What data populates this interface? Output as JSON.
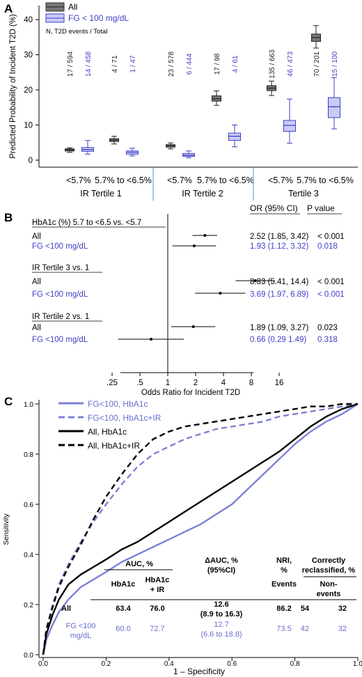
{
  "colors": {
    "all": "#333333",
    "fg": "#3f3fc8",
    "fg_fill": "#c9cbf4",
    "fg_line": "#7c80d6",
    "all_fill": "#777777",
    "axis": "#000000",
    "sep": "#5a8fc4"
  },
  "chart_data": [
    {
      "panel": "A",
      "type": "box",
      "ylabel": "Predicted Probability of Incident T2D (%)",
      "ylim": [
        -2,
        44
      ],
      "yticks": [
        0,
        10,
        20,
        30,
        40
      ],
      "legend": {
        "items": [
          {
            "key": "all",
            "label": "All"
          },
          {
            "key": "fg",
            "label": "FG < 100 mg/dL"
          }
        ],
        "note": "N, T2D events / Total",
        "position": "top-left"
      },
      "categories": [
        "<5.7%",
        "5.7% to <6.5%",
        "<5.7%",
        "5.7% to <6.5%",
        "<5.7%",
        "5.7% to <6.5%"
      ],
      "groups": [
        "IR Tertile 1",
        "IR Tertile 2",
        "Tertile 3"
      ],
      "series": [
        {
          "name": "All",
          "key": "all",
          "counts": [
            "17 / 594",
            "4 / 71",
            "23 / 578",
            "17 / 98",
            "135 / 663",
            "70 / 201"
          ],
          "boxes": [
            {
              "min": 2.2,
              "q1": 2.6,
              "med": 2.9,
              "q3": 3.2,
              "max": 3.5
            },
            {
              "min": 4.6,
              "q1": 5.3,
              "med": 5.7,
              "q3": 6.1,
              "max": 6.8
            },
            {
              "min": 3.2,
              "q1": 3.7,
              "med": 4.1,
              "q3": 4.4,
              "max": 4.9
            },
            {
              "min": 15.6,
              "q1": 16.8,
              "med": 17.5,
              "q3": 18.3,
              "max": 19.7
            },
            {
              "min": 18.4,
              "q1": 19.8,
              "med": 20.5,
              "q3": 21.2,
              "max": 22.5
            },
            {
              "min": 31.9,
              "q1": 33.8,
              "med": 34.9,
              "q3": 35.9,
              "max": 38.3
            }
          ]
        },
        {
          "name": "FG < 100 mg/dL",
          "key": "fg",
          "counts": [
            "14 / 458",
            "1 / 47",
            "6 / 444",
            "4 / 61",
            "46 / 473",
            "15 / 100"
          ],
          "boxes": [
            {
              "min": 1.7,
              "q1": 2.5,
              "med": 3.0,
              "q3": 3.6,
              "max": 5.6
            },
            {
              "min": 1.2,
              "q1": 1.7,
              "med": 2.2,
              "q3": 2.6,
              "max": 3.4
            },
            {
              "min": 0.7,
              "q1": 1.1,
              "med": 1.4,
              "q3": 1.9,
              "max": 2.6
            },
            {
              "min": 3.8,
              "q1": 5.6,
              "med": 6.8,
              "q3": 7.7,
              "max": 10.0
            },
            {
              "min": 4.8,
              "q1": 8.2,
              "med": 9.9,
              "q3": 11.3,
              "max": 17.4
            },
            {
              "min": 8.9,
              "q1": 12.1,
              "med": 15.2,
              "q3": 17.8,
              "max": 23.5
            }
          ]
        }
      ]
    },
    {
      "panel": "B",
      "type": "forest",
      "xlabel": "Odds Ratio for Incident T2D",
      "xscale": "log",
      "xticks": [
        0.25,
        0.5,
        1,
        2,
        4,
        8,
        16
      ],
      "xtick_labels": [
        ".25",
        ".5",
        "1",
        "2",
        "4",
        "8",
        "16"
      ],
      "col_headers": [
        "OR (95% CI)",
        "P value"
      ],
      "sections": [
        {
          "heading": "HbA1c (%) 5.7 to <6.5 vs. <5.7",
          "rows": [
            {
              "label": "All",
              "key": "all",
              "or": 2.52,
              "lo": 1.85,
              "hi": 3.42,
              "or_text": "2.52 (1.85, 3.42)",
              "p_text": "< 0.001"
            },
            {
              "label": "FG <100 mg/dL",
              "key": "fg",
              "or": 1.93,
              "lo": 1.12,
              "hi": 3.32,
              "or_text": "1.93 (1.12, 3.32)",
              "p_text": "0.018"
            }
          ]
        },
        {
          "heading": "IR Tertile 3 vs. 1",
          "rows": [
            {
              "label": "All",
              "key": "all",
              "or": 8.83,
              "lo": 5.41,
              "hi": 14.4,
              "or_text": "8.83 (5.41, 14.4)",
              "p_text": "< 0.001"
            },
            {
              "label": "FG <100 mg/dL",
              "key": "fg",
              "or": 3.69,
              "lo": 1.97,
              "hi": 6.89,
              "or_text": "3.69 (1.97, 6.89)",
              "p_text": "< 0.001"
            }
          ]
        },
        {
          "heading": "IR Tertile 2 vs. 1",
          "rows": [
            {
              "label": "All",
              "key": "all",
              "or": 1.89,
              "lo": 1.09,
              "hi": 3.27,
              "or_text": "1.89 (1.09, 3.27)",
              "p_text": "0.023"
            },
            {
              "label": "FG <100 mg/dL",
              "key": "fg",
              "or": 0.66,
              "lo": 0.29,
              "hi": 1.49,
              "or_text": "0.66 (0.29 1.49)",
              "p_text": "0.318"
            }
          ]
        }
      ]
    },
    {
      "panel": "C",
      "type": "line",
      "xlabel": "1 – Specificity",
      "ylabel": "Sensitivity",
      "xlim": [
        0,
        1
      ],
      "ylim": [
        0,
        1
      ],
      "ticks": [
        0,
        0.2,
        0.4,
        0.6,
        0.8,
        1
      ],
      "tick_labels": [
        "0.0",
        "0.2",
        "0.4",
        "0.6",
        "0.8",
        "1.0"
      ],
      "legend_position": "top-left",
      "series": [
        {
          "name": "FG<100, HbA1c",
          "key": "fg",
          "dash": false,
          "x": [
            0,
            0.01,
            0.03,
            0.05,
            0.08,
            0.12,
            0.16,
            0.2,
            0.25,
            0.3,
            0.35,
            0.4,
            0.45,
            0.5,
            0.55,
            0.6,
            0.65,
            0.7,
            0.75,
            0.8,
            0.85,
            0.9,
            0.95,
            1.0
          ],
          "y": [
            0,
            0.06,
            0.12,
            0.17,
            0.22,
            0.27,
            0.3,
            0.33,
            0.37,
            0.4,
            0.43,
            0.46,
            0.49,
            0.52,
            0.56,
            0.6,
            0.66,
            0.72,
            0.78,
            0.84,
            0.89,
            0.93,
            0.96,
            1.0
          ]
        },
        {
          "name": "FG<100, HbA1c+IR",
          "key": "fg",
          "dash": true,
          "x": [
            0,
            0.01,
            0.03,
            0.05,
            0.08,
            0.12,
            0.16,
            0.2,
            0.25,
            0.3,
            0.35,
            0.4,
            0.45,
            0.5,
            0.55,
            0.6,
            0.65,
            0.7,
            0.75,
            0.8,
            0.85,
            0.9,
            0.95,
            1.0
          ],
          "y": [
            0,
            0.1,
            0.2,
            0.28,
            0.36,
            0.45,
            0.53,
            0.6,
            0.68,
            0.75,
            0.8,
            0.83,
            0.86,
            0.88,
            0.9,
            0.91,
            0.92,
            0.93,
            0.95,
            0.96,
            0.97,
            0.98,
            0.99,
            1.0
          ]
        },
        {
          "name": "All, HbA1c",
          "key": "all",
          "dash": false,
          "x": [
            0,
            0.01,
            0.03,
            0.05,
            0.08,
            0.12,
            0.16,
            0.2,
            0.25,
            0.3,
            0.35,
            0.4,
            0.45,
            0.5,
            0.55,
            0.6,
            0.65,
            0.7,
            0.75,
            0.8,
            0.85,
            0.9,
            0.95,
            1.0
          ],
          "y": [
            0,
            0.08,
            0.16,
            0.22,
            0.28,
            0.32,
            0.35,
            0.38,
            0.42,
            0.45,
            0.49,
            0.53,
            0.57,
            0.61,
            0.65,
            0.69,
            0.73,
            0.77,
            0.81,
            0.86,
            0.91,
            0.95,
            0.98,
            1.0
          ]
        },
        {
          "name": "All, HbA1c+IR",
          "key": "all",
          "dash": true,
          "x": [
            0,
            0.01,
            0.03,
            0.05,
            0.08,
            0.12,
            0.16,
            0.2,
            0.25,
            0.3,
            0.35,
            0.4,
            0.45,
            0.5,
            0.55,
            0.6,
            0.65,
            0.7,
            0.75,
            0.8,
            0.85,
            0.9,
            0.95,
            1.0
          ],
          "y": [
            0,
            0.1,
            0.19,
            0.27,
            0.35,
            0.44,
            0.54,
            0.63,
            0.72,
            0.8,
            0.86,
            0.89,
            0.91,
            0.92,
            0.93,
            0.94,
            0.95,
            0.96,
            0.97,
            0.98,
            0.99,
            0.99,
            1.0,
            1.0
          ]
        }
      ],
      "table": {
        "group_headers": [
          "AUC, %",
          "ΔAUC, %",
          "(95%CI)",
          "NRI,",
          "%",
          "Correctly",
          "reclassified, %"
        ],
        "col_headers": [
          "HbA1c",
          "HbA1c",
          "+ IR",
          "Events",
          "Non-",
          "events"
        ],
        "rows": [
          {
            "key": "all",
            "label": [
              "All"
            ],
            "auc1": "63.4",
            "auc2": "76.0",
            "dauc": [
              "12.6",
              "(8.9 to 16.3)"
            ],
            "nri": "86.2",
            "events": "54",
            "nonevents": "32"
          },
          {
            "key": "fg",
            "label": [
              "FG <100",
              "mg/dL"
            ],
            "auc1": "60.0",
            "auc2": "72.7",
            "dauc": [
              "12.7",
              "(6.6 to 18.8)"
            ],
            "nri": "73.5",
            "events": "42",
            "nonevents": "32"
          }
        ]
      }
    }
  ],
  "panel_letters": [
    "A",
    "B",
    "C"
  ]
}
